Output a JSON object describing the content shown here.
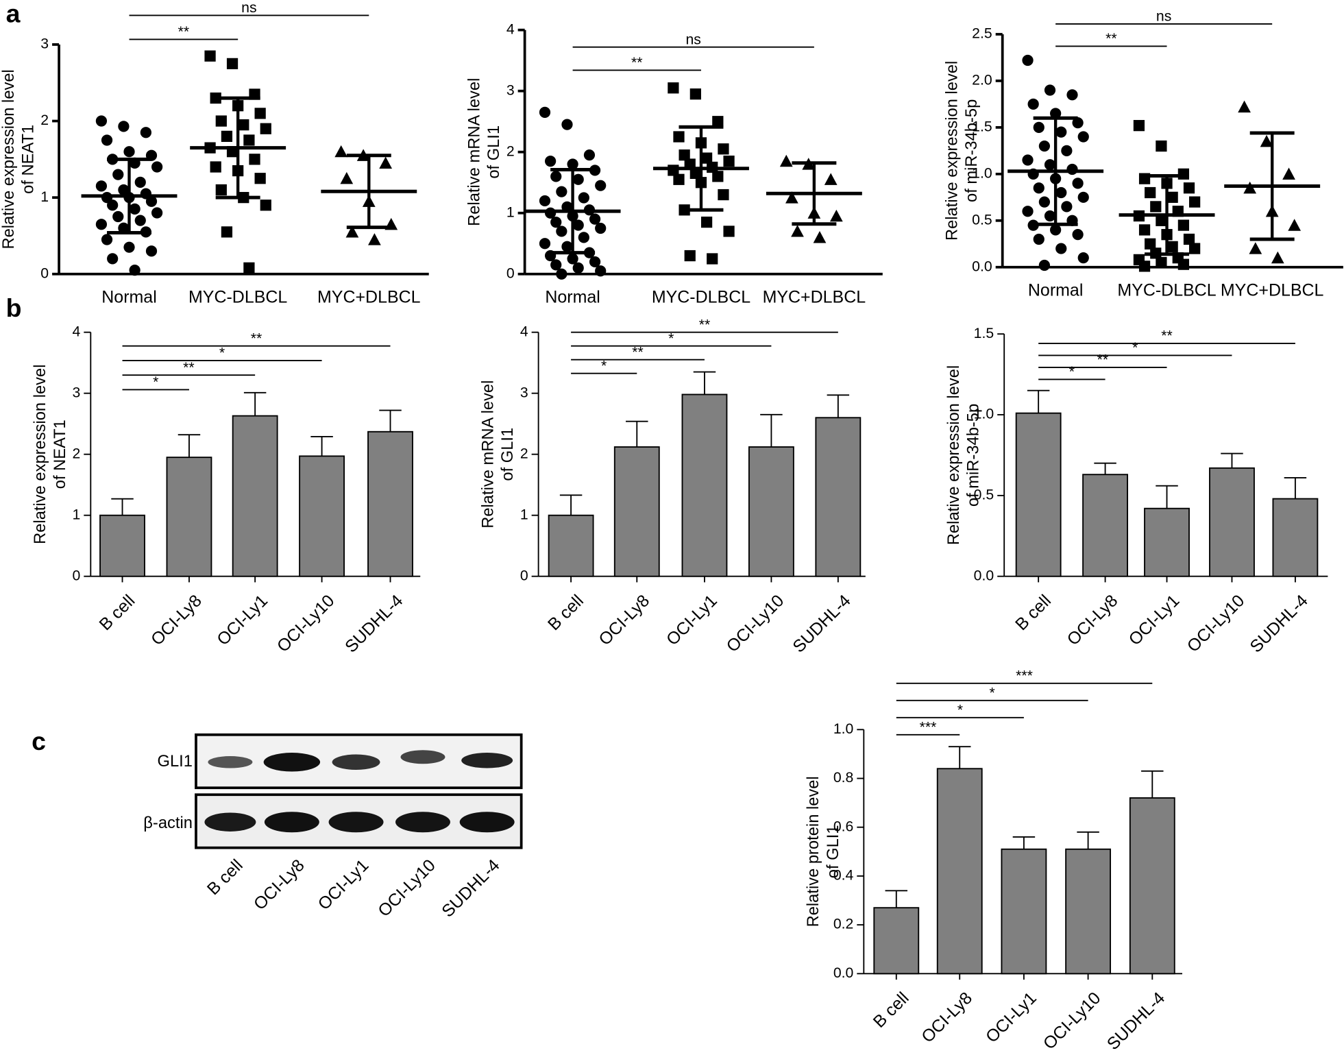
{
  "panel_labels": [
    "a",
    "b",
    "c"
  ],
  "blot": {
    "rows": [
      "GLI1",
      "β-actin"
    ],
    "lanes": [
      "B cell",
      "OCI-Ly8",
      "OCI-Ly1",
      "OCI-Ly10",
      "SUDHL-4"
    ]
  },
  "chart_data": [
    {
      "type": "dot",
      "ylabel": [
        "Relative expression level",
        "of NEAT1"
      ],
      "categories": [
        "Normal",
        "MYC-DLBCL",
        "MYC+DLBCL"
      ],
      "markers": [
        "circle",
        "square",
        "triangle"
      ],
      "color": "#000000",
      "points": [
        [
          2.0,
          1.93,
          1.85,
          1.75,
          1.6,
          1.55,
          1.5,
          1.45,
          1.4,
          1.3,
          1.2,
          1.15,
          1.1,
          1.05,
          1.0,
          1.0,
          0.95,
          0.9,
          0.85,
          0.8,
          0.75,
          0.7,
          0.65,
          0.6,
          0.55,
          0.45,
          0.35,
          0.3,
          0.2,
          0.05
        ],
        [
          2.85,
          2.75,
          2.35,
          2.3,
          2.2,
          2.1,
          2.0,
          1.95,
          1.9,
          1.8,
          1.75,
          1.65,
          1.6,
          1.5,
          1.4,
          1.35,
          1.25,
          1.1,
          1.0,
          0.9,
          0.55,
          0.08
        ],
        [
          1.6,
          1.55,
          1.45,
          1.25,
          0.95,
          0.65,
          0.55,
          0.45
        ]
      ],
      "means": [
        1.02,
        1.65,
        1.08
      ],
      "sds": [
        0.48,
        0.65,
        0.47
      ],
      "ylim": [
        0,
        3
      ],
      "yticks": [
        0,
        1,
        2,
        3
      ],
      "comparisons": [
        {
          "label": "**",
          "groups": [
            "Normal",
            "MYC-DLBCL"
          ]
        },
        {
          "label": "ns",
          "groups": [
            "Normal",
            "MYC+DLBCL"
          ]
        }
      ]
    },
    {
      "type": "dot",
      "ylabel": [
        "Relative mRNA level",
        "of GLI1"
      ],
      "categories": [
        "Normal",
        "MYC-DLBCL",
        "MYC+DLBCL"
      ],
      "markers": [
        "circle",
        "square",
        "triangle"
      ],
      "color": "#000000",
      "points": [
        [
          2.65,
          2.45,
          1.95,
          1.85,
          1.8,
          1.7,
          1.6,
          1.55,
          1.45,
          1.35,
          1.25,
          1.2,
          1.1,
          1.05,
          1.0,
          0.95,
          0.9,
          0.85,
          0.8,
          0.75,
          0.7,
          0.6,
          0.5,
          0.45,
          0.35,
          0.3,
          0.25,
          0.2,
          0.15,
          0.1,
          0.05,
          0.0
        ],
        [
          3.05,
          2.95,
          2.5,
          2.25,
          2.15,
          2.05,
          1.95,
          1.9,
          1.85,
          1.8,
          1.75,
          1.7,
          1.65,
          1.6,
          1.55,
          1.5,
          1.3,
          1.05,
          0.85,
          0.7,
          0.3,
          0.25
        ],
        [
          1.85,
          1.8,
          1.55,
          1.25,
          1.0,
          0.95,
          0.7,
          0.6
        ]
      ],
      "means": [
        1.03,
        1.73,
        1.32
      ],
      "sds": [
        0.68,
        0.68,
        0.5
      ],
      "ylim": [
        0,
        4
      ],
      "yticks": [
        0,
        1,
        2,
        3,
        4
      ],
      "comparisons": [
        {
          "label": "**",
          "groups": [
            "Normal",
            "MYC-DLBCL"
          ]
        },
        {
          "label": "ns",
          "groups": [
            "Normal",
            "MYC+DLBCL"
          ]
        }
      ]
    },
    {
      "type": "dot",
      "ylabel": [
        "Relative expression level",
        "of miR-34b-5p"
      ],
      "categories": [
        "Normal",
        "MYC-DLBCL",
        "MYC+DLBCL"
      ],
      "markers": [
        "circle",
        "square",
        "triangle"
      ],
      "color": "#000000",
      "points": [
        [
          2.22,
          1.9,
          1.85,
          1.75,
          1.65,
          1.55,
          1.5,
          1.45,
          1.4,
          1.3,
          1.25,
          1.15,
          1.1,
          1.05,
          1.0,
          0.95,
          0.9,
          0.85,
          0.8,
          0.75,
          0.7,
          0.65,
          0.6,
          0.55,
          0.5,
          0.45,
          0.4,
          0.35,
          0.3,
          0.2,
          0.1,
          0.02
        ],
        [
          1.52,
          1.3,
          1.0,
          0.95,
          0.9,
          0.85,
          0.8,
          0.75,
          0.7,
          0.65,
          0.6,
          0.55,
          0.5,
          0.45,
          0.4,
          0.35,
          0.3,
          0.25,
          0.22,
          0.2,
          0.15,
          0.1,
          0.08,
          0.05,
          0.03,
          0.01
        ],
        [
          1.72,
          1.35,
          1.0,
          0.85,
          0.6,
          0.45,
          0.2,
          0.1
        ]
      ],
      "means": [
        1.03,
        0.56,
        0.87
      ],
      "sds": [
        0.57,
        0.42,
        0.57
      ],
      "ylim": [
        0,
        2.5
      ],
      "yticks": [
        {
          "value": 0,
          "label": "0.0"
        },
        0.5,
        {
          "value": 1,
          "label": "1.0"
        },
        1.5,
        {
          "value": 2,
          "label": "2.0"
        },
        2.5
      ],
      "comparisons": [
        {
          "label": "**",
          "groups": [
            "Normal",
            "MYC-DLBCL"
          ]
        },
        {
          "label": "ns",
          "groups": [
            "Normal",
            "MYC+DLBCL"
          ]
        }
      ]
    },
    {
      "type": "bar",
      "ylabel": [
        "Relative expression level",
        "of NEAT1"
      ],
      "color": "#808080",
      "categories": [
        "B cell",
        "OCI-Ly8",
        "OCI-Ly1",
        "OCI-Ly10",
        "SUDHL-4"
      ],
      "values": [
        1.0,
        1.95,
        2.63,
        1.97,
        2.37
      ],
      "errors": [
        0.27,
        0.37,
        0.38,
        0.32,
        0.35
      ],
      "ylim": [
        0,
        4
      ],
      "yticks": [
        0,
        1,
        2,
        3,
        4
      ],
      "comparisons": [
        {
          "label": "*",
          "groups": [
            "B cell",
            "OCI-Ly8"
          ]
        },
        {
          "label": "**",
          "groups": [
            "B cell",
            "OCI-Ly1"
          ]
        },
        {
          "label": "*",
          "groups": [
            "B cell",
            "OCI-Ly10"
          ]
        },
        {
          "label": "**",
          "groups": [
            "B cell",
            "SUDHL-4"
          ]
        }
      ]
    },
    {
      "type": "bar",
      "ylabel": [
        "Relative mRNA level",
        "of GLI1"
      ],
      "color": "#808080",
      "categories": [
        "B cell",
        "OCI-Ly8",
        "OCI-Ly1",
        "OCI-Ly10",
        "SUDHL-4"
      ],
      "values": [
        1.0,
        2.12,
        2.98,
        2.12,
        2.6
      ],
      "errors": [
        0.33,
        0.42,
        0.37,
        0.53,
        0.37
      ],
      "ylim": [
        0,
        4
      ],
      "yticks": [
        0,
        1,
        2,
        3,
        4
      ],
      "comparisons": [
        {
          "label": "*",
          "groups": [
            "B cell",
            "OCI-Ly8"
          ]
        },
        {
          "label": "**",
          "groups": [
            "B cell",
            "OCI-Ly1"
          ]
        },
        {
          "label": "*",
          "groups": [
            "B cell",
            "OCI-Ly10"
          ]
        },
        {
          "label": "**",
          "groups": [
            "B cell",
            "SUDHL-4"
          ]
        }
      ]
    },
    {
      "type": "bar",
      "ylabel": [
        "Relative expression level",
        "of miR-34b-5p"
      ],
      "color": "#808080",
      "categories": [
        "B cell",
        "OCI-Ly8",
        "OCI-Ly1",
        "OCI-Ly10",
        "SUDHL-4"
      ],
      "values": [
        1.01,
        0.63,
        0.42,
        0.67,
        0.48
      ],
      "errors": [
        0.14,
        0.07,
        0.14,
        0.09,
        0.13
      ],
      "ylim": [
        0,
        1.5
      ],
      "yticks": [
        {
          "value": 0,
          "label": "0.0"
        },
        0.5,
        {
          "value": 1,
          "label": "1.0"
        },
        1.5
      ],
      "comparisons": [
        {
          "label": "*",
          "groups": [
            "B cell",
            "OCI-Ly8"
          ]
        },
        {
          "label": "**",
          "groups": [
            "B cell",
            "OCI-Ly1"
          ]
        },
        {
          "label": "*",
          "groups": [
            "B cell",
            "OCI-Ly10"
          ]
        },
        {
          "label": "**",
          "groups": [
            "B cell",
            "SUDHL-4"
          ]
        }
      ]
    },
    {
      "type": "bar",
      "ylabel": [
        "Relative protein level",
        "of GLI1"
      ],
      "color": "#808080",
      "categories": [
        "B cell",
        "OCI-Ly8",
        "OCI-Ly1",
        "OCI-Ly10",
        "SUDHL-4"
      ],
      "values": [
        0.27,
        0.84,
        0.51,
        0.51,
        0.72
      ],
      "errors": [
        0.07,
        0.09,
        0.05,
        0.07,
        0.11
      ],
      "ylim": [
        0,
        1
      ],
      "yticks": [
        {
          "value": 0,
          "label": "0.0"
        },
        0.2,
        0.4,
        0.6,
        0.8,
        {
          "value": 1,
          "label": "1.0"
        }
      ],
      "comparisons": [
        {
          "label": "***",
          "groups": [
            "B cell",
            "OCI-Ly8"
          ]
        },
        {
          "label": "*",
          "groups": [
            "B cell",
            "OCI-Ly1"
          ]
        },
        {
          "label": "*",
          "groups": [
            "B cell",
            "OCI-Ly10"
          ]
        },
        {
          "label": "***",
          "groups": [
            "B cell",
            "SUDHL-4"
          ]
        }
      ]
    }
  ]
}
